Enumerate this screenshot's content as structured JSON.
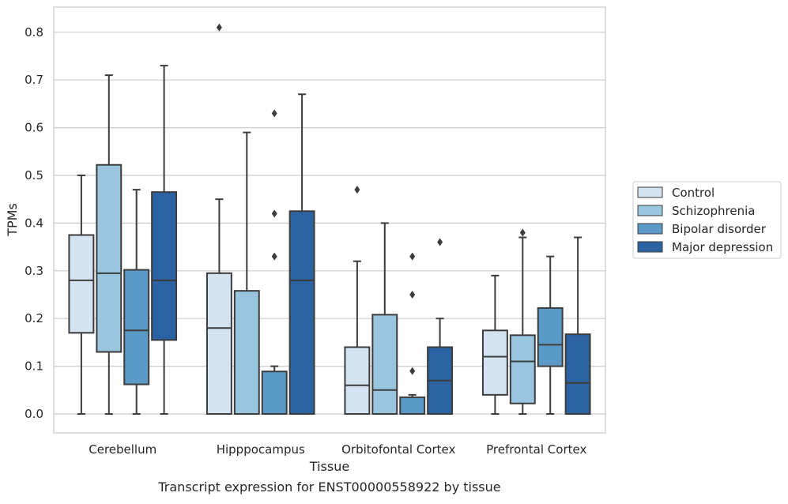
{
  "chart_data": {
    "type": "box",
    "xlabel": "Tissue",
    "ylabel": "TPMs",
    "caption": "Transcript expression for ENST00000558922 by tissue",
    "ylim": [
      -0.04,
      0.855
    ],
    "yticks": [
      0.0,
      0.1,
      0.2,
      0.3,
      0.4,
      0.5,
      0.6,
      0.7,
      0.8
    ],
    "ytick_labels": [
      "0.0",
      "0.1",
      "0.2",
      "0.3",
      "0.4",
      "0.5",
      "0.6",
      "0.7",
      "0.8"
    ],
    "grid": "horizontal",
    "legend_position": "right",
    "categories": [
      "Cerebellum",
      "Hipppocampus",
      "Orbitofontal Cortex",
      "Prefrontal Cortex"
    ],
    "series": [
      {
        "name": "Control",
        "color": "#d4e3f2",
        "boxes": [
          {
            "whislo": 0.0,
            "q1": 0.17,
            "med": 0.28,
            "q3": 0.375,
            "whishi": 0.5,
            "fliers": []
          },
          {
            "whislo": 0.0,
            "q1": 0.0,
            "med": 0.18,
            "q3": 0.295,
            "whishi": 0.45,
            "fliers": [
              0.81
            ]
          },
          {
            "whislo": 0.0,
            "q1": 0.0,
            "med": 0.06,
            "q3": 0.14,
            "whishi": 0.32,
            "fliers": [
              0.47
            ]
          },
          {
            "whislo": 0.0,
            "q1": 0.04,
            "med": 0.12,
            "q3": 0.175,
            "whishi": 0.29,
            "fliers": []
          }
        ]
      },
      {
        "name": "Schizophrenia",
        "color": "#9ac5de",
        "boxes": [
          {
            "whislo": 0.0,
            "q1": 0.13,
            "med": 0.295,
            "q3": 0.522,
            "whishi": 0.71,
            "fliers": []
          },
          {
            "whislo": 0.0,
            "q1": 0.0,
            "med": 0.0,
            "q3": 0.258,
            "whishi": 0.59,
            "fliers": []
          },
          {
            "whislo": 0.0,
            "q1": 0.0,
            "med": 0.05,
            "q3": 0.208,
            "whishi": 0.4,
            "fliers": []
          },
          {
            "whislo": 0.0,
            "q1": 0.022,
            "med": 0.11,
            "q3": 0.165,
            "whishi": 0.37,
            "fliers": [
              0.38
            ]
          }
        ]
      },
      {
        "name": "Bipolar disorder",
        "color": "#5b9ac7",
        "boxes": [
          {
            "whislo": 0.0,
            "q1": 0.062,
            "med": 0.175,
            "q3": 0.302,
            "whishi": 0.47,
            "fliers": []
          },
          {
            "whislo": 0.0,
            "q1": 0.0,
            "med": 0.0,
            "q3": 0.089,
            "whishi": 0.1,
            "fliers": [
              0.33,
              0.42,
              0.63
            ]
          },
          {
            "whislo": 0.0,
            "q1": 0.0,
            "med": 0.0,
            "q3": 0.035,
            "whishi": 0.04,
            "fliers": [
              0.09,
              0.25,
              0.33
            ]
          },
          {
            "whislo": 0.0,
            "q1": 0.1,
            "med": 0.145,
            "q3": 0.222,
            "whishi": 0.33,
            "fliers": []
          }
        ]
      },
      {
        "name": "Major depression",
        "color": "#2b62a1",
        "boxes": [
          {
            "whislo": 0.0,
            "q1": 0.155,
            "med": 0.28,
            "q3": 0.465,
            "whishi": 0.73,
            "fliers": []
          },
          {
            "whislo": 0.0,
            "q1": 0.0,
            "med": 0.28,
            "q3": 0.425,
            "whishi": 0.67,
            "fliers": []
          },
          {
            "whislo": 0.0,
            "q1": 0.0,
            "med": 0.07,
            "q3": 0.14,
            "whishi": 0.2,
            "fliers": [
              0.36
            ]
          },
          {
            "whislo": 0.0,
            "q1": 0.0,
            "med": 0.065,
            "q3": 0.167,
            "whishi": 0.37,
            "fliers": []
          }
        ]
      }
    ]
  }
}
